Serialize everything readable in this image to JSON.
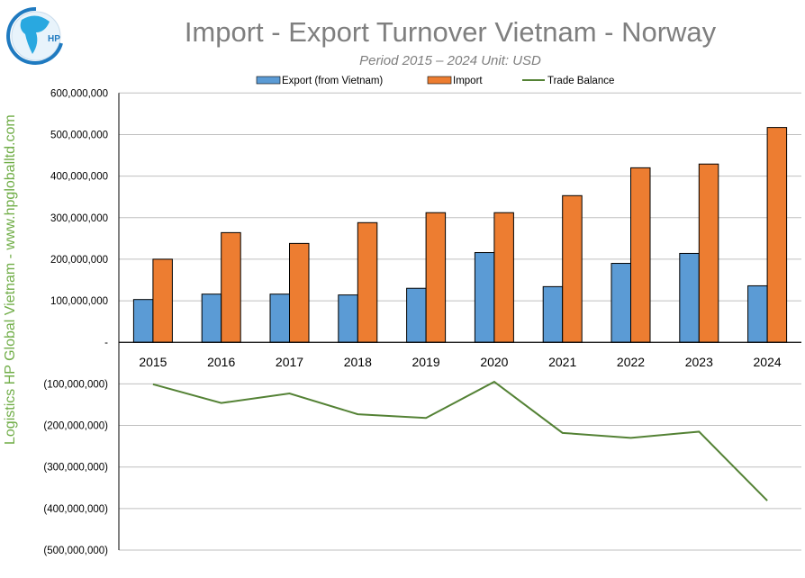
{
  "chart_data": {
    "type": "bar",
    "title": "Import - Export Turnover Vietnam - Norway",
    "subtitle": "Period 2015 – 2024  Unit: USD",
    "side_label": "Logistics HP Global Vietnam - www.hpgloballtd.com",
    "logo_text": "HP",
    "categories": [
      "2015",
      "2016",
      "2017",
      "2018",
      "2019",
      "2020",
      "2021",
      "2022",
      "2023",
      "2024"
    ],
    "series": [
      {
        "name": "Export (from Vietnam)",
        "type": "bar",
        "color": "#5b9bd5",
        "values": [
          103000000,
          116000000,
          116000000,
          114000000,
          130000000,
          216000000,
          134000000,
          190000000,
          214000000,
          136000000
        ]
      },
      {
        "name": "Import",
        "type": "bar",
        "color": "#ed7d31",
        "values": [
          200000000,
          264000000,
          238000000,
          288000000,
          312000000,
          312000000,
          353000000,
          420000000,
          429000000,
          517000000
        ]
      },
      {
        "name": "Trade Balance",
        "type": "line",
        "color": "#548235",
        "values": [
          -101000000,
          -146000000,
          -123000000,
          -173000000,
          -182000000,
          -95000000,
          -218000000,
          -230000000,
          -215000000,
          -381000000
        ]
      }
    ],
    "ylim": [
      -500000000,
      600000000
    ],
    "yticks": [
      600000000,
      500000000,
      400000000,
      300000000,
      200000000,
      100000000,
      0,
      -100000000,
      -200000000,
      -300000000,
      -400000000,
      -500000000
    ],
    "ytick_labels": [
      "600,000,000",
      "500,000,000",
      "400,000,000",
      "300,000,000",
      "200,000,000",
      "100,000,000",
      "-",
      "(100,000,000)",
      "(200,000,000)",
      "(300,000,000)",
      "(400,000,000)",
      "(500,000,000)"
    ],
    "grid": true,
    "legend_position": "top"
  }
}
